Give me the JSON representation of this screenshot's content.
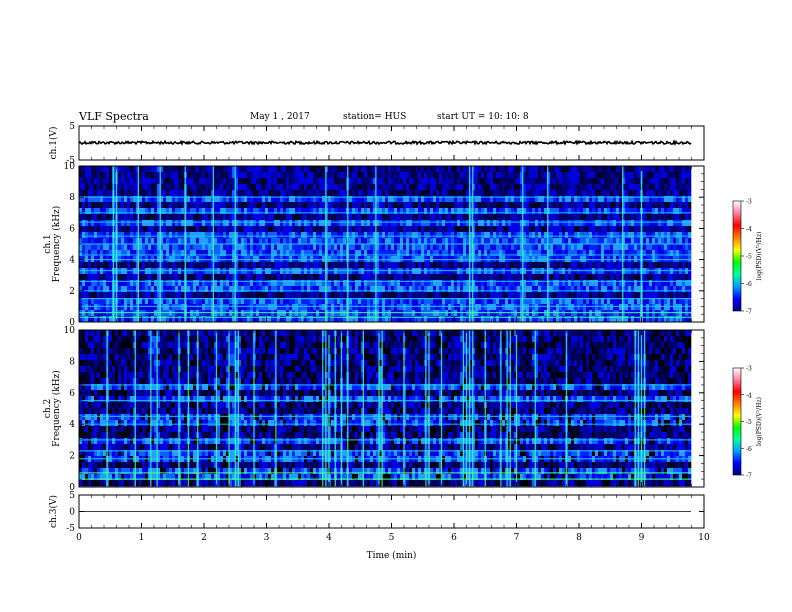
{
  "header": {
    "title": "VLF Spectra",
    "date": "May 1 , 2017",
    "station": "station= HUS",
    "start": "start UT = 10: 10: 8"
  },
  "chart_data": [
    {
      "type": "line",
      "panel": "ch1-waveform",
      "ylabel": "ch.1(V)",
      "ylim": [
        -5,
        5
      ],
      "yticks": [
        "5",
        "-5"
      ],
      "xlim": [
        0,
        10
      ],
      "series": [
        {
          "value_level": 0.1,
          "amplitude": 0.4,
          "x_end": 9.8
        }
      ]
    },
    {
      "type": "heatmap",
      "panel": "ch1-spectrogram",
      "ylabel_line1": "ch.1",
      "ylabel_line2": "Frequency (kHz)",
      "ylim": [
        0,
        10
      ],
      "yticks": [
        "0",
        "2",
        "4",
        "6",
        "8",
        "10"
      ],
      "xlim": [
        0,
        10
      ],
      "data_end_min": 9.8,
      "bright_bands_khz": [
        0.3,
        0.6,
        1.0,
        1.5,
        2.0,
        2.6,
        3.3,
        4.0,
        4.3,
        5.0,
        5.5,
        6.4,
        7.0,
        8.0
      ],
      "bright_columns_min": [
        0.55,
        0.6,
        0.95,
        1.3,
        1.7,
        2.15,
        2.5,
        3.95,
        4.3,
        4.75,
        6.25,
        6.3,
        7.1,
        7.5,
        8.7,
        9.0
      ]
    },
    {
      "type": "heatmap",
      "panel": "ch2-spectrogram",
      "ylabel_line1": "ch.2",
      "ylabel_line2": "Frequency (kHz)",
      "ylim": [
        0,
        10
      ],
      "yticks": [
        "0",
        "2",
        "4",
        "6",
        "8",
        "10"
      ],
      "xlim": [
        0,
        10
      ],
      "data_end_min": 9.8,
      "bright_bands_khz": [
        0.5,
        0.9,
        1.8,
        2.3,
        3.0,
        4.0,
        4.5,
        5.5,
        6.5
      ],
      "bright_columns_min": [
        0.45,
        0.9,
        1.15,
        1.25,
        1.6,
        1.75,
        1.9,
        2.2,
        2.4,
        2.5,
        2.55,
        2.8,
        3.15,
        3.9,
        3.95,
        4.0,
        4.1,
        4.2,
        4.3,
        4.55,
        4.8,
        4.85,
        5.2,
        5.55,
        5.6,
        5.8,
        6.15,
        6.2,
        6.25,
        6.3,
        6.5,
        6.75,
        6.85,
        6.9,
        7.0,
        7.3,
        7.8,
        8.9,
        8.95,
        9.0,
        9.05
      ]
    },
    {
      "type": "line",
      "panel": "ch3-waveform",
      "ylabel": "ch.3(V)",
      "ylim": [
        -5,
        5
      ],
      "yticks": [
        "5",
        "0",
        "-5"
      ],
      "xlim": [
        0,
        10
      ],
      "xticks": [
        "0",
        "1",
        "2",
        "3",
        "4",
        "5",
        "6",
        "7",
        "8",
        "9",
        "10"
      ],
      "xlabel": "Time (min)",
      "series": [
        {
          "value_level": 0.0,
          "amplitude": 0.0,
          "x_end": 9.8
        }
      ]
    }
  ],
  "colorbar": {
    "label": "log(PSD)(V²/Hz)",
    "range": [
      -7,
      -3
    ],
    "ticks": [
      "-3",
      "-4",
      "-5",
      "-6",
      "-7"
    ],
    "colors": [
      "#000080",
      "#0000ff",
      "#00a0ff",
      "#00ffa0",
      "#00ff00",
      "#ffff00",
      "#ff8000",
      "#ff0000",
      "#ff80a0",
      "#ffffff"
    ]
  }
}
